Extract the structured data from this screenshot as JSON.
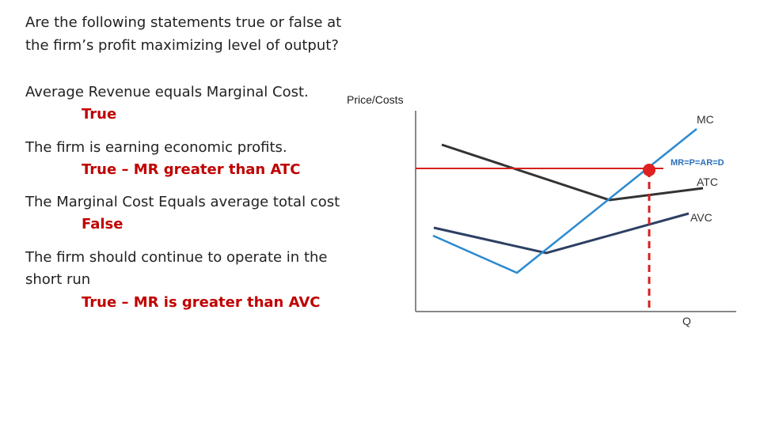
{
  "question": {
    "lines": [
      "Are the following statements true or false at",
      "the firm’s profit maximizing level of output?"
    ]
  },
  "items": [
    {
      "statement": [
        "Average Revenue equals Marginal Cost."
      ],
      "answer": "True"
    },
    {
      "statement": [
        "The firm is earning economic profits."
      ],
      "answer": "True – MR greater than ATC"
    },
    {
      "statement": [
        "The Marginal Cost Equals average total cost"
      ],
      "answer": "False"
    },
    {
      "statement": [
        "The firm should continue to operate in the",
        "short run"
      ],
      "answer": "True – MR is greater than AVC"
    }
  ],
  "diagram": {
    "y_axis_label": "Price/Costs",
    "x_axis_label": "Q",
    "curves": {
      "mc": "MC",
      "mr": "MR=P=AR=D",
      "atc": "ATC",
      "avc": "AVC"
    }
  }
}
